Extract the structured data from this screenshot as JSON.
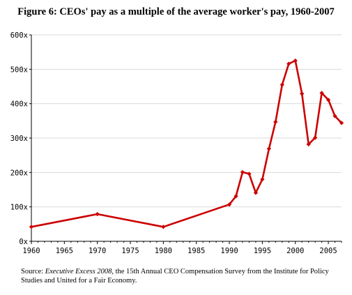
{
  "chart_data": {
    "type": "line",
    "title": "Figure 6: CEOs' pay as a multiple of the average worker's pay, 1960-2007",
    "xlabel": "",
    "ylabel": "",
    "xlim": [
      1960,
      2007
    ],
    "ylim": [
      0,
      600
    ],
    "x_ticks": [
      "1960",
      "1965",
      "1970",
      "1975",
      "1980",
      "1985",
      "1990",
      "1995",
      "2000",
      "2005"
    ],
    "y_ticks": [
      "0x",
      "100x",
      "200x",
      "300x",
      "400x",
      "500x",
      "600x"
    ],
    "grid": true,
    "legend": "none",
    "series": [
      {
        "color": "#cc0000",
        "x": [
          1960,
          1970,
          1980,
          1990,
          1991,
          1992,
          1993,
          1994,
          1995,
          1996,
          1997,
          1998,
          1999,
          2000,
          2001,
          2002,
          2003,
          2004,
          2005,
          2006,
          2007
        ],
        "y": [
          42,
          79,
          42,
          107,
          131,
          201,
          196,
          141,
          180,
          269,
          347,
          455,
          516,
          525,
          429,
          282,
          301,
          431,
          411,
          364,
          344
        ]
      }
    ]
  },
  "source": {
    "prefix": "Source: ",
    "italic": "Executive Excess 2008",
    "suffix": ", the 15th Annual CEO Compensation Survey from the Institute for Policy Studies and United for a Fair Economy."
  }
}
